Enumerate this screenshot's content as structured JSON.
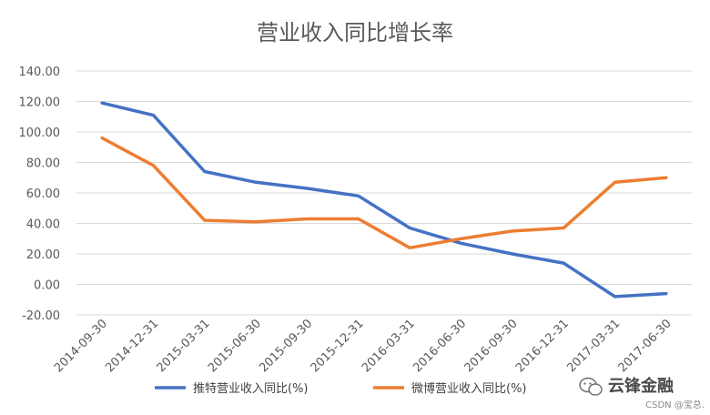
{
  "chart_data": {
    "type": "line",
    "title": "营业收入同比增长率",
    "categories": [
      "2014-09-30",
      "2014-12-31",
      "2015-03-31",
      "2015-06-30",
      "2015-09-30",
      "2015-12-31",
      "2016-03-31",
      "2016-06-30",
      "2016-09-30",
      "2016-12-31",
      "2017-03-31",
      "2017-06-30"
    ],
    "ylim": [
      -20,
      140
    ],
    "yticks": [
      "-20.00",
      "0.00",
      "20.00",
      "40.00",
      "60.00",
      "80.00",
      "100.00",
      "120.00",
      "140.00"
    ],
    "grid": true,
    "legend_position": "bottom",
    "series": [
      {
        "name": "推特营业收入同比(%)",
        "color": "#4472c4",
        "values": [
          119,
          111,
          74,
          67,
          63,
          58,
          37,
          27,
          20,
          14,
          -8,
          -6
        ]
      },
      {
        "name": "微博营业收入同比(%)",
        "color": "#ed7d31",
        "values": [
          96,
          78,
          42,
          41,
          43,
          43,
          24,
          30,
          35,
          37,
          67,
          70
        ]
      }
    ]
  },
  "watermark": {
    "logo_text": "云锋金融",
    "source_text": "CSDN @宝总.",
    "icon": "wechat-icon"
  }
}
